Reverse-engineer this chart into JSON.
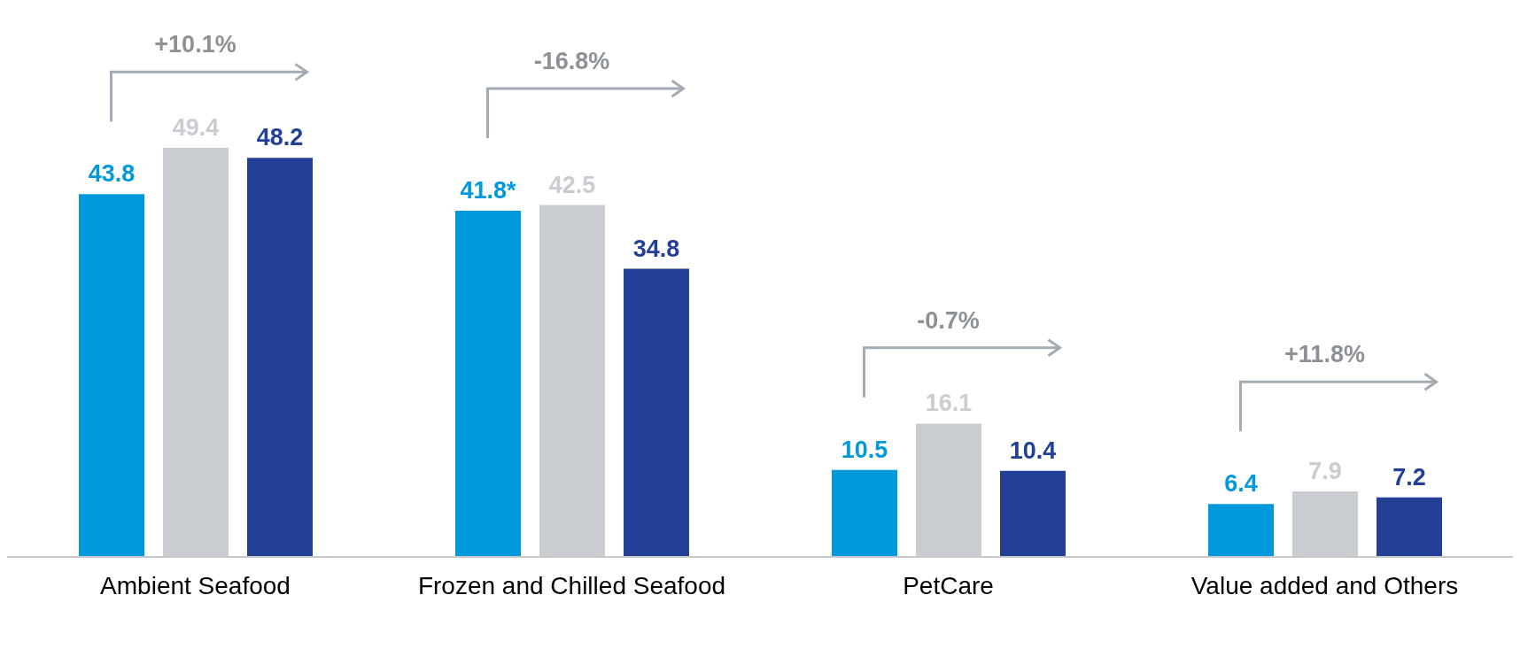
{
  "chart_data": {
    "type": "bar",
    "categories": [
      "Ambient Seafood",
      "Frozen and Chilled Seafood",
      "PetCare",
      "Value added and Others"
    ],
    "series": [
      {
        "color": "#0099dc",
        "values": [
          43.8,
          41.8,
          10.5,
          6.4
        ],
        "value_labels": [
          "43.8",
          "41.8*",
          "10.5",
          "6.4"
        ]
      },
      {
        "color": "#c9cdd1",
        "values": [
          49.4,
          42.5,
          16.1,
          7.9
        ]
      },
      {
        "color": "#233f96",
        "values": [
          48.2,
          34.8,
          10.4,
          7.2
        ]
      }
    ],
    "data_labels": true,
    "annotations": [
      "+10.1%",
      "-16.8%",
      "-0.7%",
      "+11.8%"
    ]
  }
}
